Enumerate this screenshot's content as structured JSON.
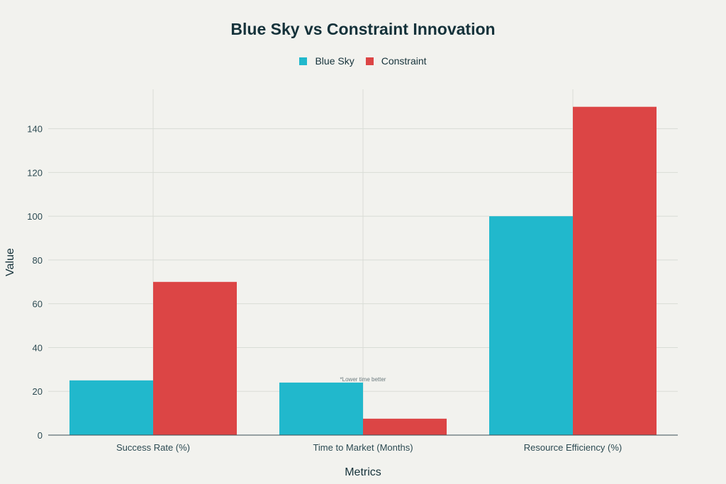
{
  "chart_data": {
    "type": "bar",
    "title": "Blue Sky vs Constraint Innovation",
    "xlabel": "Metrics",
    "ylabel": "Value",
    "categories": [
      "Success Rate (%)",
      "Time to Market (Months)",
      "Resource Efficiency (%)"
    ],
    "series": [
      {
        "name": "Blue Sky",
        "color": "#21b8cc",
        "values": [
          25,
          24,
          100
        ]
      },
      {
        "name": "Constraint",
        "color": "#dc4545",
        "values": [
          70,
          7.5,
          150
        ]
      }
    ],
    "ylim": [
      0,
      158
    ],
    "yticks": [
      0,
      20,
      40,
      60,
      80,
      100,
      120,
      140
    ],
    "grid": true,
    "legend_position": "top-center",
    "annotations": [
      {
        "text": "*Lower time better",
        "category": "Time to Market (Months)",
        "series": "Blue Sky"
      }
    ]
  }
}
